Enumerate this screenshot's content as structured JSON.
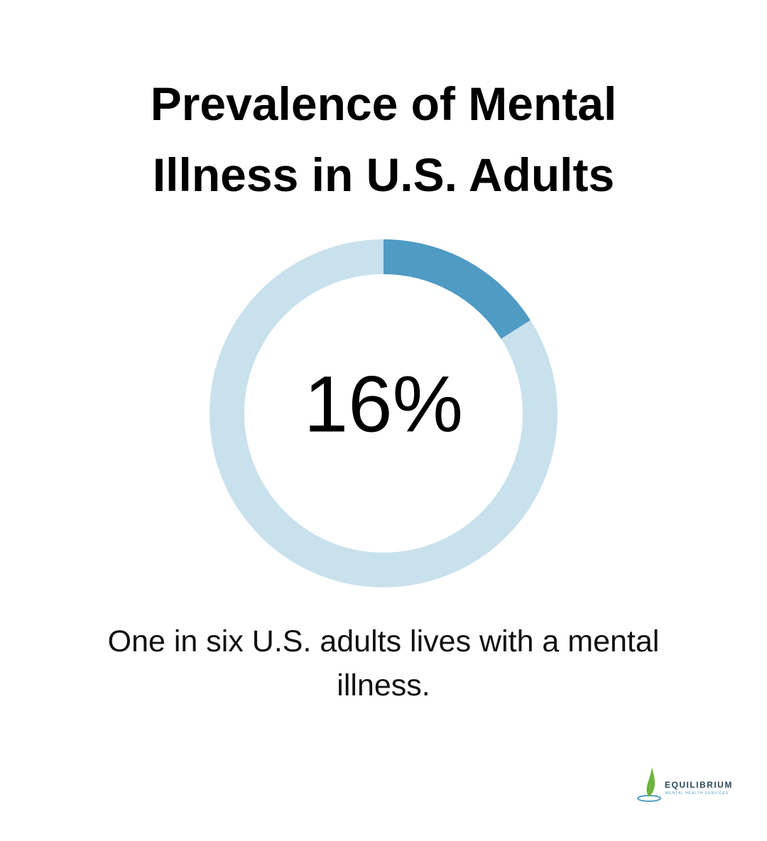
{
  "chart_data": {
    "type": "donut",
    "title": "Prevalence of Mental Illness in U.S. Adults",
    "values": [
      16
    ],
    "value_labels": [
      "16%"
    ],
    "color": "#4f9bc4",
    "caption": "One in six U.S. adults lives with a mental illness."
  },
  "logo": {
    "name": "EQUILIBRIUM",
    "tagline": "MENTAL HEALTH SERVICES"
  }
}
